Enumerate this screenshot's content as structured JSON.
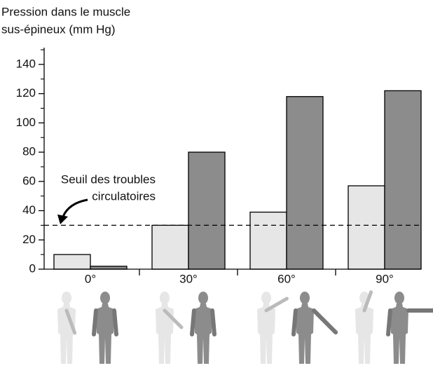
{
  "chart_data": {
    "type": "bar",
    "ylabel": [
      "Pression dans le muscle",
      "sus-épineux (mm Hg)"
    ],
    "categories": [
      "0°",
      "30°",
      "60°",
      "90°"
    ],
    "series": [
      {
        "color": "#e6e6e6",
        "values": [
          10,
          30,
          39,
          57
        ]
      },
      {
        "color": "#8c8c8c",
        "values": [
          2,
          80,
          118,
          122
        ]
      }
    ],
    "ylim": [
      0,
      150
    ],
    "yticks": [
      0,
      20,
      40,
      60,
      80,
      100,
      120,
      140
    ],
    "yminorticks": [
      10,
      30,
      50,
      70,
      90,
      110,
      130,
      150
    ],
    "annotations": [
      {
        "text": [
          "Seuil des troubles",
          "circulatoires"
        ],
        "value": 30
      }
    ]
  }
}
